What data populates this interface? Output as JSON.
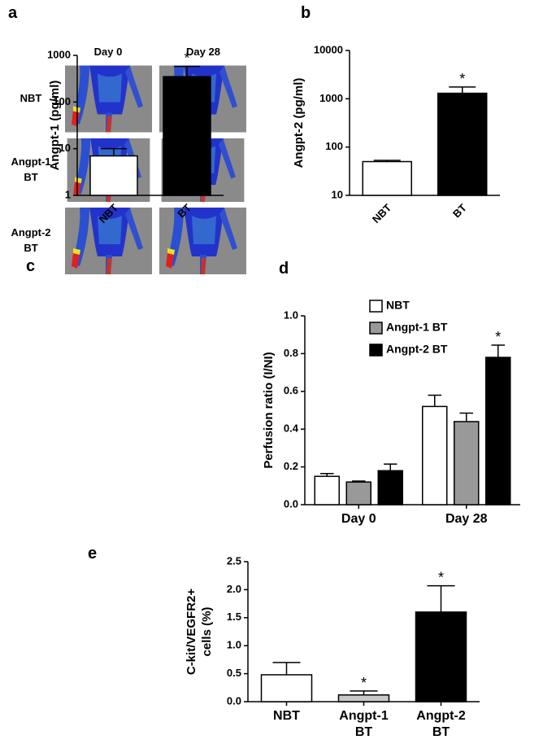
{
  "chart_data": [
    {
      "panel": "a",
      "type": "bar",
      "ylabel": "Angpt-1 (pg/ml)",
      "log_scale": true,
      "categories": [
        "NBT",
        "BT"
      ],
      "values": [
        7,
        350
      ],
      "errors": [
        3,
        230
      ],
      "colors": [
        "#ffffff",
        "#000000"
      ],
      "ylim": [
        1,
        1000
      ],
      "yticks": [
        1,
        10,
        100,
        1000
      ],
      "annotations": [
        {
          "text": "*",
          "category": 1
        }
      ]
    },
    {
      "panel": "b",
      "type": "bar",
      "ylabel": "Angpt-2 (pg/ml)",
      "log_scale": true,
      "categories": [
        "NBT",
        "BT"
      ],
      "values": [
        50,
        1300
      ],
      "errors": [
        3,
        450
      ],
      "colors": [
        "#ffffff",
        "#000000"
      ],
      "ylim": [
        10,
        10000
      ],
      "yticks": [
        10,
        100,
        1000,
        10000
      ],
      "annotations": [
        {
          "text": "*",
          "category": 1
        }
      ]
    },
    {
      "panel": "d",
      "type": "grouped_bar",
      "ylabel": "Perfusion ratio (I/NI)",
      "categories": [
        "Day 0",
        "Day 28"
      ],
      "series": [
        {
          "name": "NBT",
          "color": "#ffffff",
          "values": [
            0.15,
            0.52
          ],
          "errors": [
            0.015,
            0.06
          ]
        },
        {
          "name": "Angpt-1 BT",
          "color": "#999999",
          "values": [
            0.12,
            0.44
          ],
          "errors": [
            0.005,
            0.045
          ]
        },
        {
          "name": "Angpt-2 BT",
          "color": "#000000",
          "values": [
            0.18,
            0.78
          ],
          "errors": [
            0.035,
            0.065
          ]
        }
      ],
      "ylim": [
        0,
        1.0
      ],
      "yticks": [
        {
          "value": 0,
          "label": "0.0"
        },
        0.2,
        0.4,
        0.6,
        0.8,
        {
          "value": 1,
          "label": "1.0"
        }
      ],
      "annotations": [
        {
          "text": "*",
          "series": 2,
          "category": 1
        }
      ]
    },
    {
      "panel": "e",
      "type": "bar",
      "ylabel": [
        "C-kit/VEGFR2+",
        "cells (%)"
      ],
      "categories": [
        [
          "NBT"
        ],
        [
          "Angpt-1",
          "BT"
        ],
        [
          "Angpt-2",
          "BT"
        ]
      ],
      "values": [
        0.48,
        0.12,
        1.6
      ],
      "errors": [
        0.22,
        0.07,
        0.47
      ],
      "colors": [
        "#ffffff",
        "#c8c8c8",
        "#000000"
      ],
      "ylim": [
        0,
        2.5
      ],
      "yticks": [
        {
          "value": 0,
          "label": "0.0"
        },
        0.5,
        {
          "value": 1,
          "label": "1.0"
        },
        1.5,
        {
          "value": 2,
          "label": "2.0"
        },
        2.5
      ],
      "annotations": [
        {
          "text": "*",
          "category": 1
        },
        {
          "text": "*",
          "category": 2
        }
      ]
    }
  ],
  "image_panel": {
    "panel": "c",
    "columns": [
      "Day 0",
      "Day 28"
    ],
    "rows": [
      [
        "NBT"
      ],
      [
        "Angpt-1",
        "BT"
      ],
      [
        "Angpt-2",
        "BT"
      ]
    ]
  }
}
